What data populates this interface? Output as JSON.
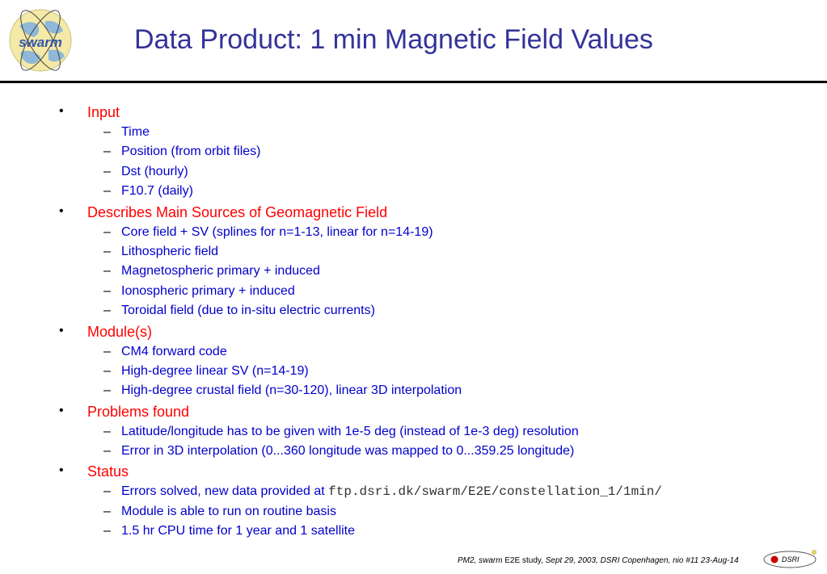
{
  "header": {
    "logo_text": "swarm",
    "title": "Data Product: 1 min Magnetic Field Values"
  },
  "sections": [
    {
      "heading": "Input",
      "items": [
        {
          "text": "Time"
        },
        {
          "text": "Position (from orbit files)"
        },
        {
          "text": "Dst (hourly)"
        },
        {
          "text": "F10.7 (daily)"
        }
      ]
    },
    {
      "heading": "Describes Main Sources of Geomagnetic Field",
      "items": [
        {
          "text": "Core field + SV (splines for n=1-13, linear for n=14-19)"
        },
        {
          "text": "Lithospheric field"
        },
        {
          "text": "Magnetospheric primary + induced"
        },
        {
          "text": "Ionospheric primary + induced"
        },
        {
          "text": "Toroidal field (due to in-situ electric currents)"
        }
      ]
    },
    {
      "heading": "Module(s)",
      "items": [
        {
          "text": "CM4 forward code"
        },
        {
          "text": "High-degree linear SV (n=14-19)"
        },
        {
          "text": "High-degree crustal field (n=30-120), linear 3D interpolation"
        }
      ]
    },
    {
      "heading": "Problems found",
      "items": [
        {
          "text": "Latitude/longitude has to be given with 1e-5 deg (instead of 1e-3 deg) resolution"
        },
        {
          "text": "Error in 3D interpolation (0...360 longitude was mapped to 0...359.25 longitude)"
        }
      ]
    },
    {
      "heading": "Status",
      "items": [
        {
          "text": "Errors solved, new data provided at ",
          "link": "ftp.dsri.dk/swarm/E2E/constellation_1/1min/"
        },
        {
          "text": "Module is able to run on routine basis"
        },
        {
          "text": "1.5 hr CPU time for 1 year and 1 satellite"
        }
      ]
    }
  ],
  "bullet_char": "•",
  "dash_char": "–",
  "footer": {
    "part1": "PM2, swarm",
    "part2": " E2E study, ",
    "part3": "Sept 29, 2003, DSRI Copenhagen, nio #11 23-Aug-14",
    "badge": "DSRI"
  },
  "colors": {
    "title": "#333399",
    "heading": "#ff0000",
    "item": "#0000cc",
    "badge_dot": "#cc0000"
  }
}
